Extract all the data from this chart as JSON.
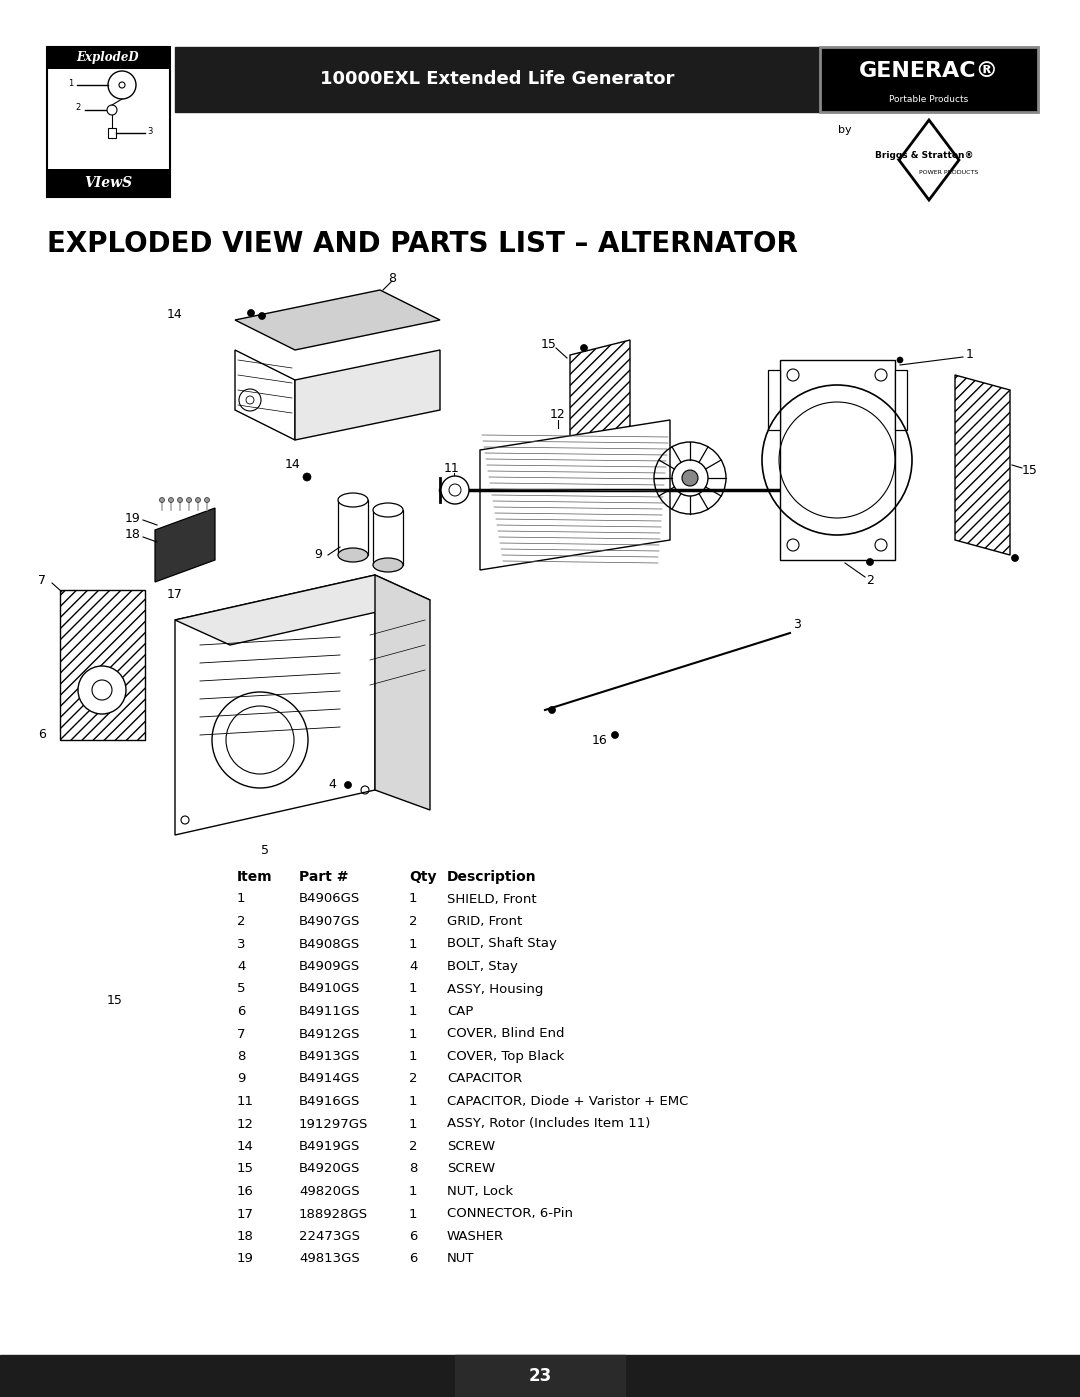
{
  "page_title": "10000EXL Extended Life Generator",
  "section_title": "EXPLODED VIEW AND PARTS LIST – ALTERNATOR",
  "page_number": "23",
  "background_color": "#ffffff",
  "header_bg_color": "#1a1a1a",
  "header_text_color": "#ffffff",
  "footer_bg_color": "#1a1a1a",
  "footer_text_color": "#ffffff",
  "parts_table": {
    "headers": [
      "Item",
      "Part #",
      "Qty",
      "Description"
    ],
    "rows": [
      [
        "1",
        "B4906GS",
        "1",
        "SHIELD, Front"
      ],
      [
        "2",
        "B4907GS",
        "2",
        "GRID, Front"
      ],
      [
        "3",
        "B4908GS",
        "1",
        "BOLT, Shaft Stay"
      ],
      [
        "4",
        "B4909GS",
        "4",
        "BOLT, Stay"
      ],
      [
        "5",
        "B4910GS",
        "1",
        "ASSY, Housing"
      ],
      [
        "6",
        "B4911GS",
        "1",
        "CAP"
      ],
      [
        "7",
        "B4912GS",
        "1",
        "COVER, Blind End"
      ],
      [
        "8",
        "B4913GS",
        "1",
        "COVER, Top Black"
      ],
      [
        "9",
        "B4914GS",
        "2",
        "CAPACITOR"
      ],
      [
        "11",
        "B4916GS",
        "1",
        "CAPACITOR, Diode + Varistor + EMC"
      ],
      [
        "12",
        "191297GS",
        "1",
        "ASSY, Rotor (Includes Item 11)"
      ],
      [
        "14",
        "B4919GS",
        "2",
        "SCREW"
      ],
      [
        "15",
        "B4920GS",
        "8",
        "SCREW"
      ],
      [
        "16",
        "49820GS",
        "1",
        "NUT, Lock"
      ],
      [
        "17",
        "188928GS",
        "1",
        "CONNECTOR, 6-Pin"
      ],
      [
        "18",
        "22473GS",
        "6",
        "WASHER"
      ],
      [
        "19",
        "49813GS",
        "6",
        "NUT"
      ]
    ]
  }
}
